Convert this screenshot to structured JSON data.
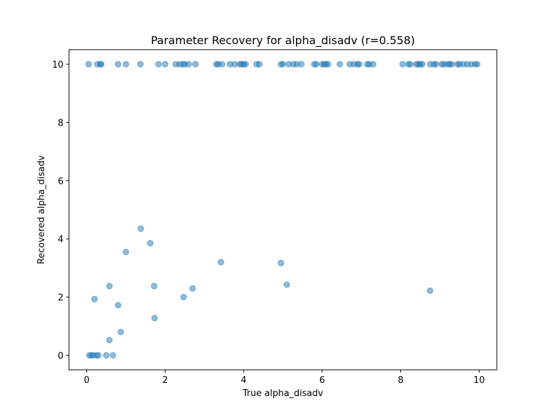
{
  "chart_data": {
    "type": "scatter",
    "title": "Parameter Recovery for alpha_disadv (r=0.558)",
    "xlabel": "True alpha_disadv",
    "ylabel": "Recovered alpha_disadv",
    "xlim": [
      -0.45,
      10.45
    ],
    "ylim": [
      -0.5,
      10.5
    ],
    "xticks": [
      0,
      2,
      4,
      6,
      8,
      10
    ],
    "yticks": [
      0,
      2,
      4,
      6,
      8,
      10
    ],
    "grid": false,
    "marker_color": "#1f77b4",
    "marker_alpha": 0.5,
    "points": [
      [
        0.05,
        10
      ],
      [
        0.27,
        10
      ],
      [
        0.35,
        10
      ],
      [
        0.37,
        10
      ],
      [
        0.8,
        10
      ],
      [
        1.0,
        10
      ],
      [
        1.37,
        10
      ],
      [
        1.83,
        10
      ],
      [
        2.0,
        10
      ],
      [
        2.27,
        10
      ],
      [
        2.37,
        10
      ],
      [
        2.45,
        10
      ],
      [
        2.5,
        10
      ],
      [
        2.6,
        10
      ],
      [
        2.77,
        10
      ],
      [
        3.3,
        10
      ],
      [
        3.35,
        10
      ],
      [
        3.45,
        10
      ],
      [
        3.65,
        10
      ],
      [
        3.77,
        10
      ],
      [
        3.9,
        10
      ],
      [
        3.95,
        10
      ],
      [
        4.0,
        10
      ],
      [
        4.05,
        10
      ],
      [
        4.33,
        10
      ],
      [
        4.4,
        10
      ],
      [
        4.95,
        10
      ],
      [
        5.0,
        10
      ],
      [
        5.15,
        10
      ],
      [
        5.27,
        10
      ],
      [
        5.35,
        10
      ],
      [
        5.47,
        10
      ],
      [
        5.8,
        10
      ],
      [
        5.85,
        10
      ],
      [
        6.0,
        10
      ],
      [
        6.05,
        10
      ],
      [
        6.1,
        10
      ],
      [
        6.15,
        10
      ],
      [
        6.45,
        10
      ],
      [
        6.7,
        10
      ],
      [
        6.8,
        10
      ],
      [
        6.9,
        10
      ],
      [
        6.95,
        10
      ],
      [
        7.15,
        10
      ],
      [
        7.2,
        10
      ],
      [
        7.3,
        10
      ],
      [
        8.05,
        10
      ],
      [
        8.2,
        10
      ],
      [
        8.25,
        10
      ],
      [
        8.4,
        10
      ],
      [
        8.45,
        10
      ],
      [
        8.5,
        10
      ],
      [
        8.55,
        10
      ],
      [
        8.75,
        10
      ],
      [
        8.85,
        10
      ],
      [
        8.9,
        10
      ],
      [
        9.05,
        10
      ],
      [
        9.1,
        10
      ],
      [
        9.2,
        10
      ],
      [
        9.25,
        10
      ],
      [
        9.3,
        10
      ],
      [
        9.45,
        10
      ],
      [
        9.5,
        10
      ],
      [
        9.6,
        10
      ],
      [
        9.7,
        10
      ],
      [
        9.8,
        10
      ],
      [
        9.9,
        10
      ],
      [
        9.95,
        10
      ],
      [
        0.07,
        0
      ],
      [
        0.12,
        0
      ],
      [
        0.17,
        0
      ],
      [
        0.25,
        0
      ],
      [
        0.3,
        0
      ],
      [
        0.5,
        0
      ],
      [
        0.67,
        0
      ],
      [
        0.2,
        1.93
      ],
      [
        0.58,
        2.38
      ],
      [
        0.58,
        0.52
      ],
      [
        0.8,
        1.72
      ],
      [
        0.87,
        0.8
      ],
      [
        1.0,
        3.55
      ],
      [
        1.38,
        4.35
      ],
      [
        1.62,
        3.85
      ],
      [
        1.72,
        2.38
      ],
      [
        1.73,
        1.28
      ],
      [
        2.47,
        2.0
      ],
      [
        2.7,
        2.3
      ],
      [
        3.42,
        3.2
      ],
      [
        4.95,
        3.17
      ],
      [
        5.1,
        2.43
      ],
      [
        8.75,
        2.22
      ]
    ]
  }
}
